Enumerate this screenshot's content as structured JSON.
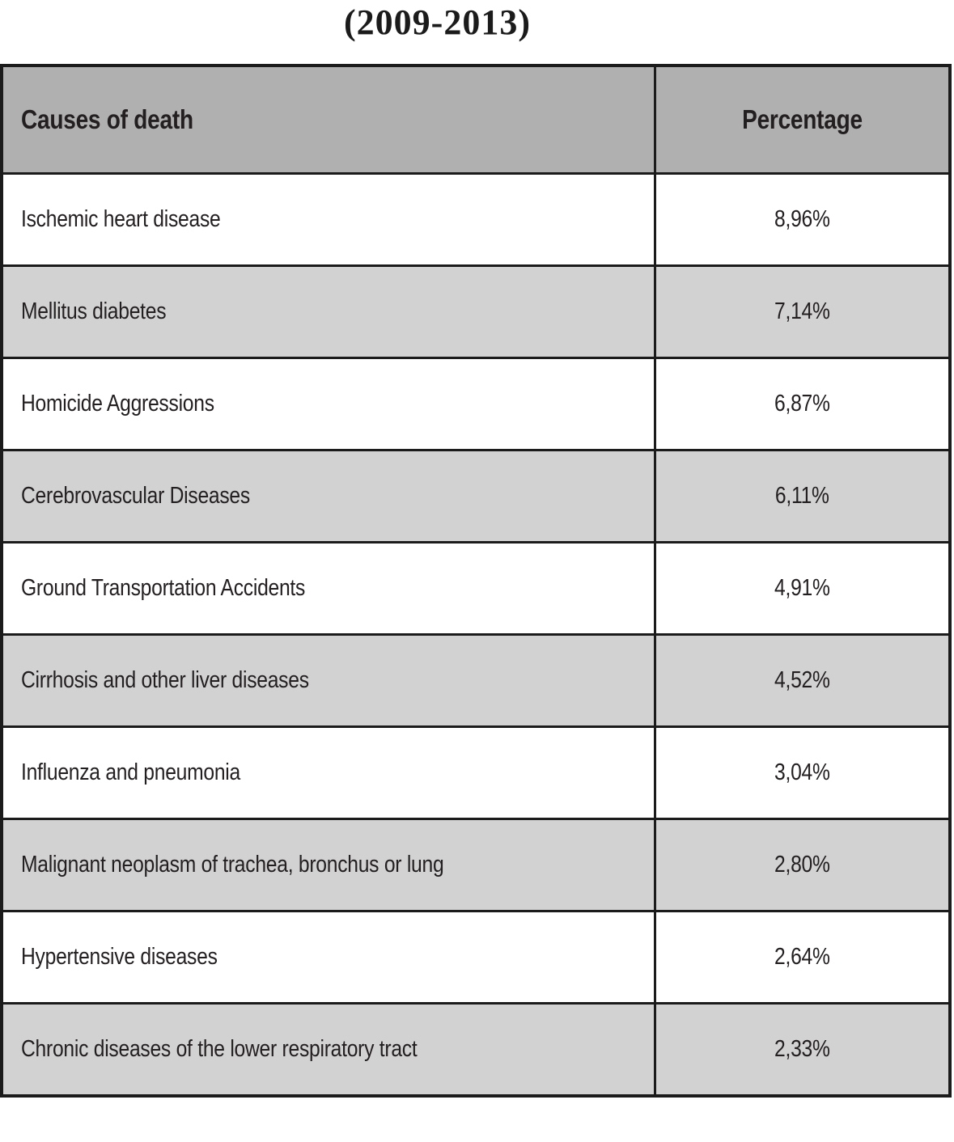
{
  "title": "(2009-2013)",
  "table": {
    "headers": [
      "Causes of death",
      "Percentage"
    ],
    "rows": [
      {
        "cause": "Ischemic heart disease",
        "percentage": "8,96%"
      },
      {
        "cause": "Mellitus diabetes",
        "percentage": "7,14%"
      },
      {
        "cause": "Homicide Aggressions",
        "percentage": "6,87%"
      },
      {
        "cause": "Cerebrovascular Diseases",
        "percentage": "6,11%"
      },
      {
        "cause": "Ground Transportation Accidents",
        "percentage": "4,91%"
      },
      {
        "cause": "Cirrhosis and other liver diseases",
        "percentage": "4,52%"
      },
      {
        "cause": "Influenza and pneumonia",
        "percentage": "3,04%"
      },
      {
        "cause": "Malignant neoplasm of trachea, bronchus or lung",
        "percentage": "2,80%"
      },
      {
        "cause": "Hypertensive diseases",
        "percentage": "2,64%"
      },
      {
        "cause": "Chronic diseases of the lower respiratory tract",
        "percentage": "2,33%"
      }
    ]
  },
  "colors": {
    "header_bg": "#b0b0b0",
    "alt_row_bg": "#d2d2d2",
    "row_bg": "#ffffff",
    "border": "#1b1b1b",
    "text": "#231f20"
  }
}
